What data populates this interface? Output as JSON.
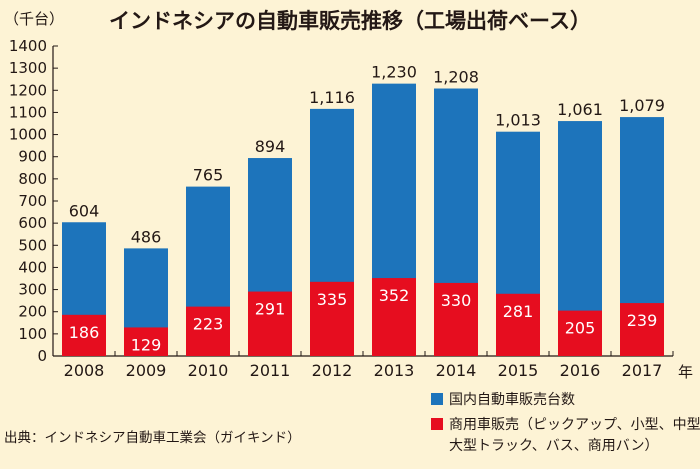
{
  "chart_data": {
    "type": "bar",
    "title": "インドネシアの自動車販売推移（工場出荷ベース）",
    "y_unit_label": "（千台）",
    "x_unit_label": "年",
    "categories": [
      "2008",
      "2009",
      "2010",
      "2011",
      "2012",
      "2013",
      "2014",
      "2015",
      "2016",
      "2017"
    ],
    "y_ticks": [
      "0",
      "100",
      "200",
      "300",
      "400",
      "500",
      "600",
      "700",
      "800",
      "900",
      "1000",
      "1100",
      "1200",
      "1300",
      "1400"
    ],
    "ylim": [
      0,
      1400
    ],
    "grid": false,
    "legend_position": "bottom-right",
    "series": [
      {
        "name": "国内自動車販売台数",
        "color": "#1d74bb",
        "values": [
          604,
          486,
          765,
          894,
          1116,
          1230,
          1208,
          1013,
          1061,
          1079
        ],
        "labels": [
          "604",
          "486",
          "765",
          "894",
          "1,116",
          "1,230",
          "1,208",
          "1,013",
          "1,061",
          "1,079"
        ]
      },
      {
        "name": "商用車販売（ピックアップ、小型、中型、大型トラック、バス、商用バン）",
        "legend_lines": [
          "商用車販売（ピックアップ、小型、中型、",
          "大型トラック、バス、商用バン）"
        ],
        "color": "#e60d1f",
        "values": [
          186,
          129,
          223,
          291,
          335,
          352,
          330,
          281,
          205,
          239
        ],
        "labels": [
          "186",
          "129",
          "223",
          "291",
          "335",
          "352",
          "330",
          "281",
          "205",
          "239"
        ]
      }
    ],
    "source": "出典：インドネシア自動車工業会（ガイキンド）"
  }
}
